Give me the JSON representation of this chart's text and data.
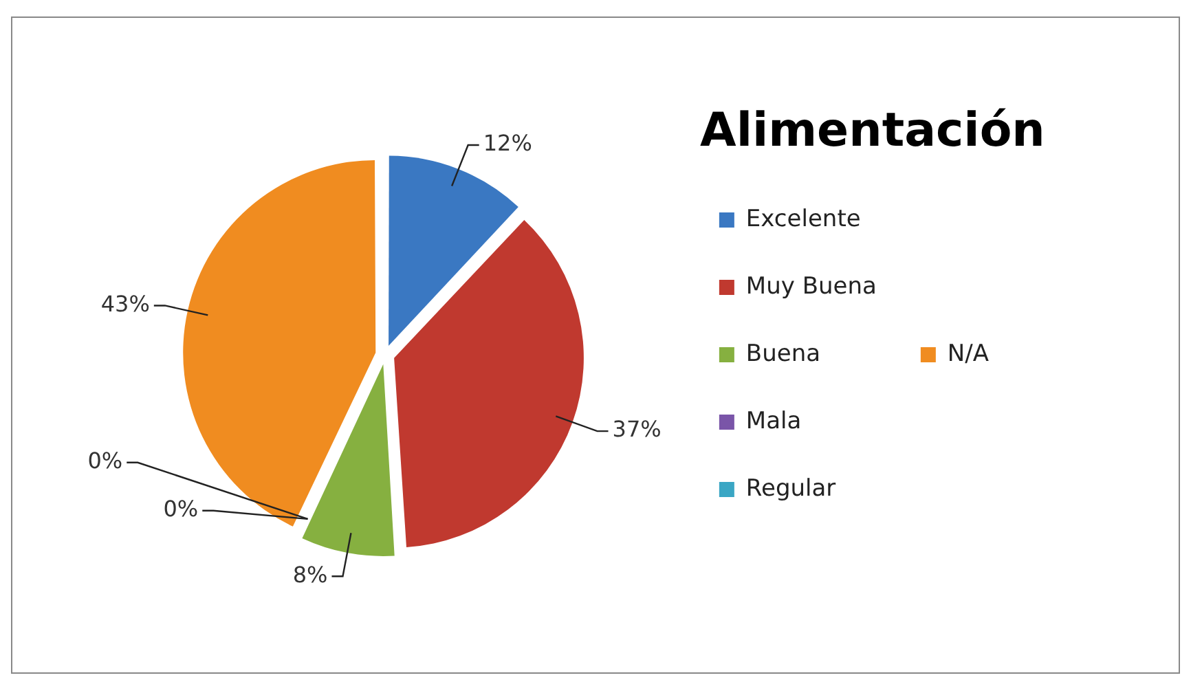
{
  "chart_data": {
    "type": "pie",
    "title": "Alimentación",
    "categories": [
      "Excelente",
      "Muy Buena",
      "Buena",
      "Mala",
      "Regular",
      "N/A"
    ],
    "values": [
      12,
      37,
      8,
      0,
      0,
      43
    ],
    "colors": [
      "#3a78c2",
      "#c0392f",
      "#86b040",
      "#7a55a8",
      "#3aa6c4",
      "#f08c20"
    ],
    "value_labels": [
      "12%",
      "37%",
      "8%",
      "0%",
      "0%",
      "43%"
    ],
    "legend": "right"
  }
}
